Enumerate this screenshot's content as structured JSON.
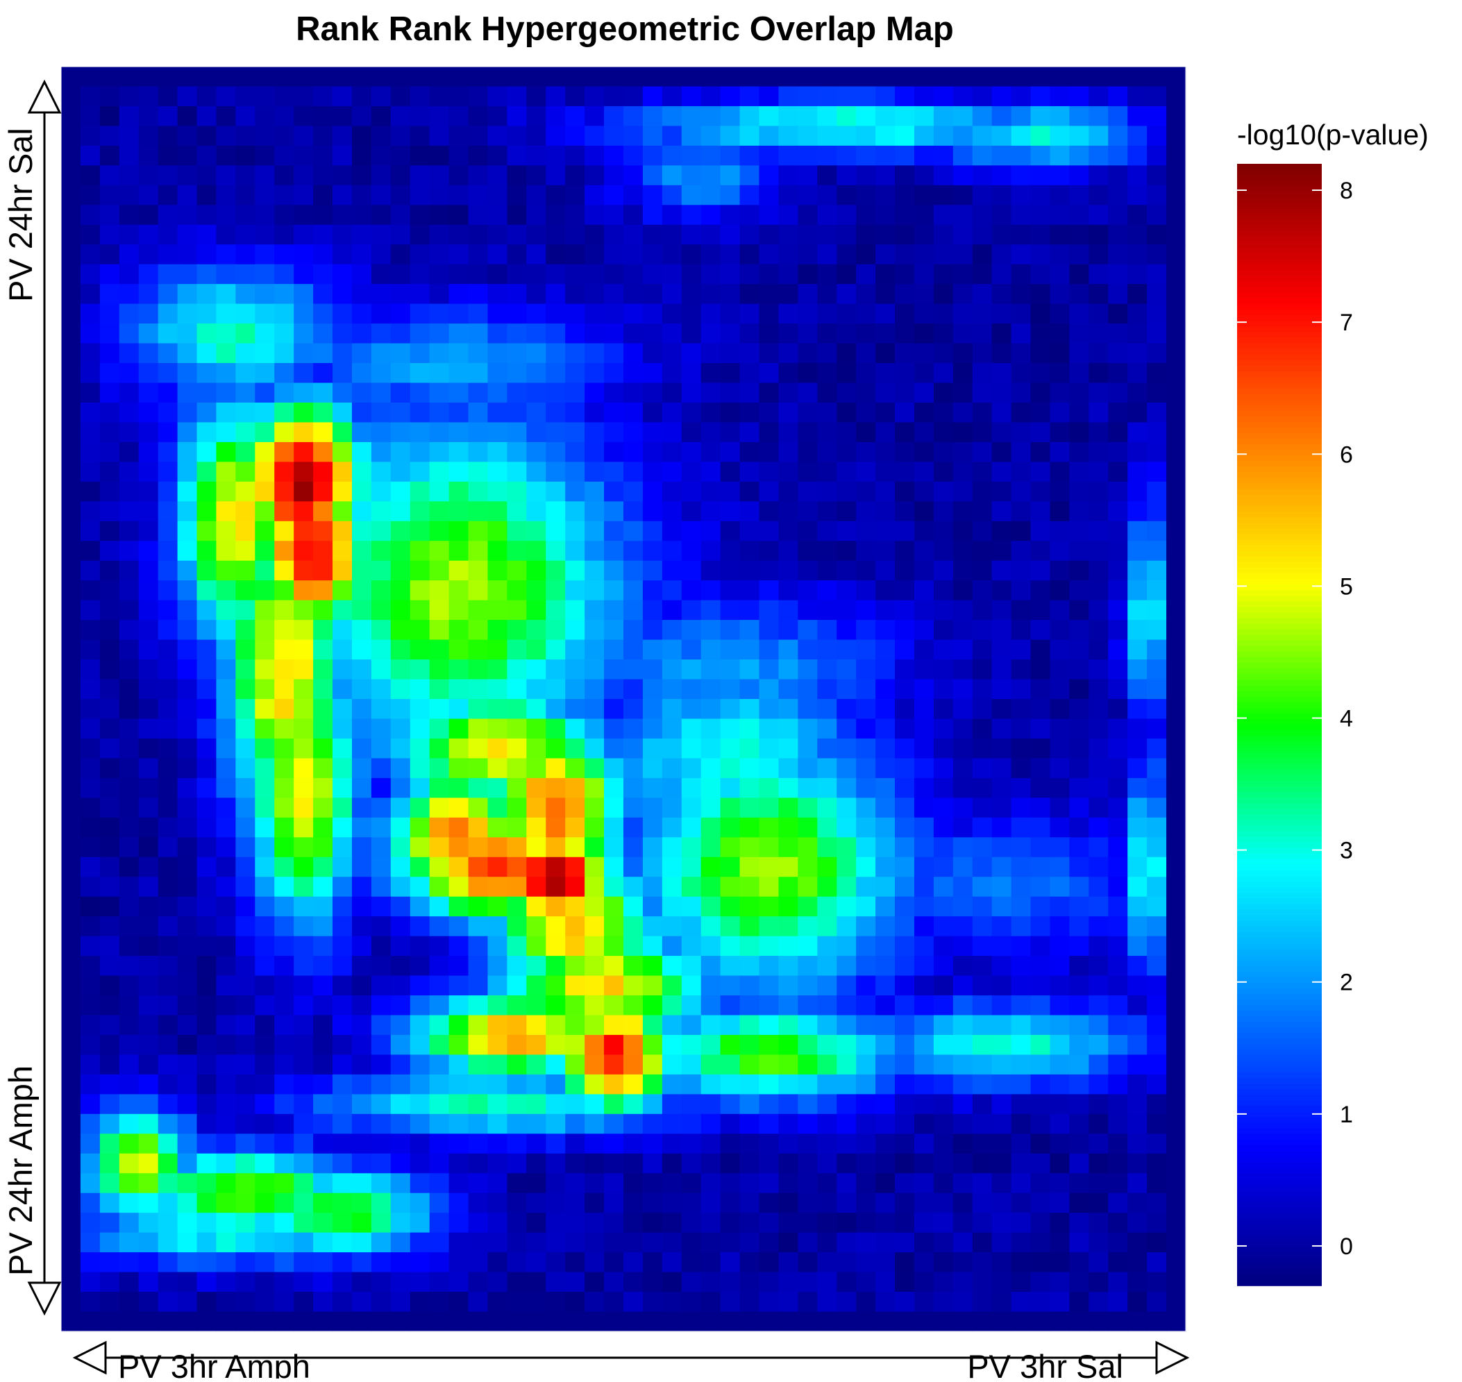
{
  "chart_data": {
    "type": "heatmap",
    "title": "Rank Rank Hypergeometric Overlap Map",
    "xlabel_left": "PV 3hr Amph",
    "xlabel_right": "PV 3hr Sal",
    "ylabel_top": "PV 24hr Sal",
    "ylabel_bottom": "PV 24hr Amph",
    "colorbar": {
      "label": "-log10(p-value)",
      "range": [
        -0.3,
        8.2
      ],
      "ticks": [
        0,
        1,
        2,
        3,
        4,
        5,
        6,
        7,
        8
      ],
      "tick_labels": [
        "0",
        "1",
        "2",
        "3",
        "4",
        "5",
        "6",
        "7",
        "8"
      ],
      "colormap": [
        "#00007f",
        "#0000ff",
        "#007fff",
        "#00ffff",
        "#00ff00",
        "#ffff00",
        "#ff7f00",
        "#ff0000",
        "#7f0000"
      ]
    },
    "grid_size": [
      58,
      64
    ],
    "x_order": "columns run from PV 3hr Amph (left) to PV 3hr Sal (right)",
    "y_order": "rows run from PV 24hr Sal (top) to PV 24hr Amph (bottom)",
    "hotspots": [
      {
        "col": 12.0,
        "row": 20.5,
        "value": 8.1,
        "sx": 2.2,
        "sy": 2.8
      },
      {
        "col": 12.5,
        "row": 24.0,
        "value": 7.4,
        "sx": 2.0,
        "sy": 3.0
      },
      {
        "col": 8.5,
        "row": 22.5,
        "value": 5.2,
        "sx": 2.2,
        "sy": 4.5
      },
      {
        "col": 11.0,
        "row": 30.0,
        "value": 5.4,
        "sx": 2.2,
        "sy": 6.0
      },
      {
        "col": 12.0,
        "row": 36.0,
        "value": 5.2,
        "sx": 2.0,
        "sy": 5.0
      },
      {
        "col": 25.0,
        "row": 37.0,
        "value": 6.2,
        "sx": 2.5,
        "sy": 3.0
      },
      {
        "col": 25.0,
        "row": 40.5,
        "value": 8.2,
        "sx": 2.0,
        "sy": 1.8
      },
      {
        "col": 22.0,
        "row": 40.0,
        "value": 6.7,
        "sx": 3.5,
        "sy": 2.0
      },
      {
        "col": 20.0,
        "row": 38.5,
        "value": 6.2,
        "sx": 2.5,
        "sy": 2.5
      },
      {
        "col": 26.0,
        "row": 43.0,
        "value": 5.6,
        "sx": 3.0,
        "sy": 2.5
      },
      {
        "col": 27.5,
        "row": 46.0,
        "value": 5.3,
        "sx": 4.0,
        "sy": 2.0
      },
      {
        "col": 28.0,
        "row": 49.5,
        "value": 7.1,
        "sx": 2.2,
        "sy": 2.0
      },
      {
        "col": 23.0,
        "row": 48.5,
        "value": 5.8,
        "sx": 4.0,
        "sy": 1.5
      },
      {
        "col": 22.0,
        "row": 34.0,
        "value": 5.3,
        "sx": 4.0,
        "sy": 2.0
      },
      {
        "col": 20.0,
        "row": 26.0,
        "value": 4.6,
        "sx": 6.0,
        "sy": 6.0
      },
      {
        "col": 36.0,
        "row": 40.0,
        "value": 4.5,
        "sx": 5.0,
        "sy": 4.5
      },
      {
        "col": 36.0,
        "row": 49.5,
        "value": 4.2,
        "sx": 5.0,
        "sy": 1.8
      },
      {
        "col": 34.0,
        "row": 34.5,
        "value": 3.0,
        "sx": 5.0,
        "sy": 3.5
      },
      {
        "col": 34.0,
        "row": 30.0,
        "value": 2.1,
        "sx": 6.0,
        "sy": 2.5
      },
      {
        "col": 8.5,
        "row": 13.0,
        "value": 3.2,
        "sx": 4.0,
        "sy": 2.5
      },
      {
        "col": 20.0,
        "row": 14.5,
        "value": 2.2,
        "sx": 6.0,
        "sy": 2.0
      },
      {
        "col": 3.5,
        "row": 55.0,
        "value": 4.8,
        "sx": 2.0,
        "sy": 2.0
      },
      {
        "col": 9.0,
        "row": 56.5,
        "value": 4.6,
        "sx": 4.0,
        "sy": 1.6
      },
      {
        "col": 14.0,
        "row": 57.5,
        "value": 4.0,
        "sx": 3.5,
        "sy": 1.6
      },
      {
        "col": 8.0,
        "row": 58.5,
        "value": 3.0,
        "sx": 6.0,
        "sy": 1.2
      },
      {
        "col": 40.0,
        "row": 2.5,
        "value": 3.2,
        "sx": 8.0,
        "sy": 1.0
      },
      {
        "col": 50.0,
        "row": 3.0,
        "value": 2.8,
        "sx": 4.0,
        "sy": 1.2
      },
      {
        "col": 32.5,
        "row": 5.0,
        "value": 2.0,
        "sx": 3.0,
        "sy": 1.5
      },
      {
        "col": 55.5,
        "row": 27.0,
        "value": 3.0,
        "sx": 0.8,
        "sy": 4.0
      },
      {
        "col": 55.5,
        "row": 40.0,
        "value": 3.2,
        "sx": 0.8,
        "sy": 4.0
      },
      {
        "col": 48.0,
        "row": 49.0,
        "value": 3.2,
        "sx": 5.0,
        "sy": 1.5
      },
      {
        "col": 22.0,
        "row": 52.0,
        "value": 3.2,
        "sx": 7.0,
        "sy": 1.2
      },
      {
        "col": 48.0,
        "row": 41.0,
        "value": 1.8,
        "sx": 5.0,
        "sy": 2.5
      }
    ]
  }
}
